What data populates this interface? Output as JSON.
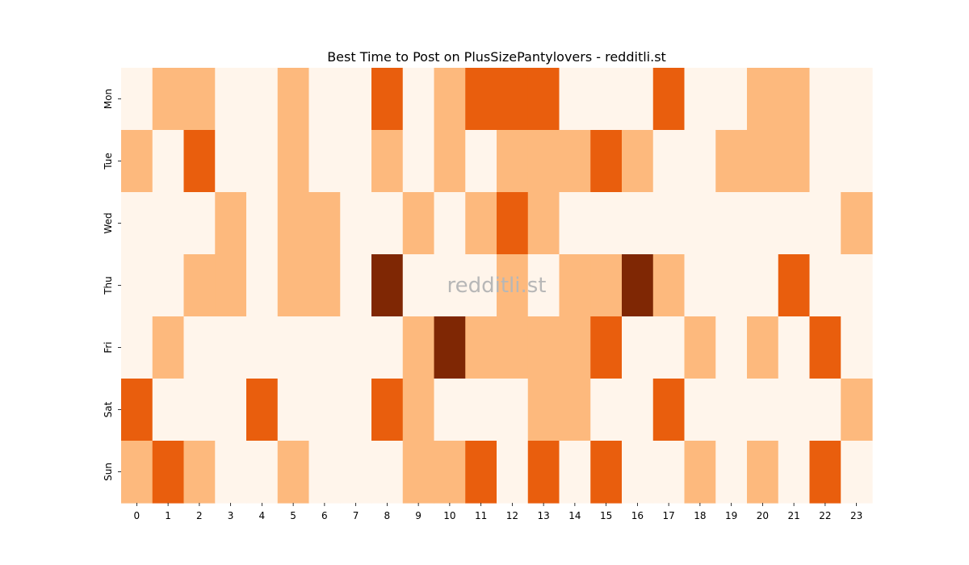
{
  "chart_data": {
    "type": "heatmap",
    "title": "Best Time to Post on PlusSizePantylovers - redditli.st",
    "xlabel": "",
    "ylabel": "",
    "x_categories": [
      "0",
      "1",
      "2",
      "3",
      "4",
      "5",
      "6",
      "7",
      "8",
      "9",
      "10",
      "11",
      "12",
      "13",
      "14",
      "15",
      "16",
      "17",
      "18",
      "19",
      "20",
      "21",
      "22",
      "23"
    ],
    "y_categories": [
      "Mon",
      "Tue",
      "Wed",
      "Thu",
      "Fri",
      "Sat",
      "Sun"
    ],
    "values": [
      [
        0,
        1,
        1,
        0,
        0,
        1,
        0,
        0,
        2,
        0,
        1,
        2,
        2,
        2,
        0,
        0,
        0,
        2,
        0,
        0,
        1,
        1,
        0,
        0
      ],
      [
        1,
        0,
        2,
        0,
        0,
        1,
        0,
        0,
        1,
        0,
        1,
        0,
        1,
        1,
        1,
        2,
        1,
        0,
        0,
        1,
        1,
        1,
        0,
        0
      ],
      [
        0,
        0,
        0,
        1,
        0,
        1,
        1,
        0,
        0,
        1,
        0,
        1,
        2,
        1,
        0,
        0,
        0,
        0,
        0,
        0,
        0,
        0,
        0,
        1
      ],
      [
        0,
        0,
        1,
        1,
        0,
        1,
        1,
        0,
        3,
        0,
        0,
        0,
        1,
        0,
        1,
        1,
        3,
        1,
        0,
        0,
        0,
        2,
        0,
        0
      ],
      [
        0,
        1,
        0,
        0,
        0,
        0,
        0,
        0,
        0,
        1,
        3,
        1,
        1,
        1,
        1,
        2,
        0,
        0,
        1,
        0,
        1,
        0,
        2,
        0
      ],
      [
        2,
        0,
        0,
        0,
        2,
        0,
        0,
        0,
        2,
        1,
        0,
        0,
        0,
        1,
        1,
        0,
        0,
        2,
        0,
        0,
        0,
        0,
        0,
        1
      ],
      [
        1,
        2,
        1,
        0,
        0,
        1,
        0,
        0,
        0,
        1,
        1,
        2,
        0,
        2,
        0,
        2,
        0,
        0,
        1,
        0,
        1,
        0,
        2,
        0
      ]
    ],
    "color_scale": [
      "#fff5eb",
      "#fdb97d",
      "#e95e0d",
      "#7f2704"
    ],
    "colorbar": false,
    "grid": false,
    "watermark": "redditli.st"
  }
}
